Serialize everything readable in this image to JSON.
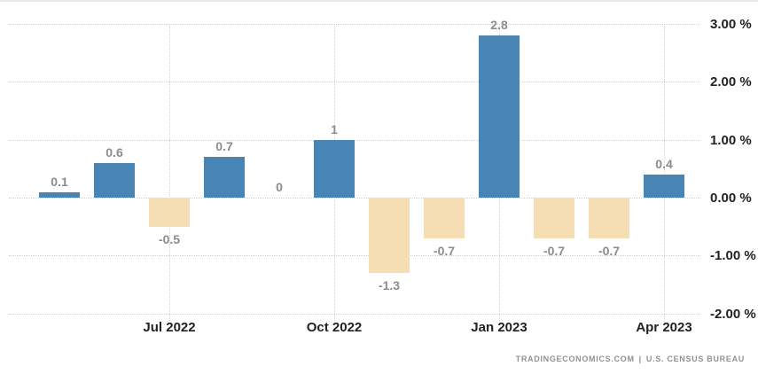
{
  "chart_data": {
    "type": "bar",
    "values": [
      0.1,
      0.6,
      -0.5,
      0.7,
      0,
      1,
      -1.3,
      -0.7,
      2.8,
      -0.7,
      -0.7,
      0.4
    ],
    "value_labels": [
      "0.1",
      "0.6",
      "-0.5",
      "0.7",
      "0",
      "1",
      "-1.3",
      "-0.7",
      "2.8",
      "-0.7",
      "-0.7",
      "0.4"
    ],
    "x_ticks": [
      {
        "label": "Jul 2022",
        "bar_index": 2
      },
      {
        "label": "Oct 2022",
        "bar_index": 5
      },
      {
        "label": "Jan 2023",
        "bar_index": 8
      },
      {
        "label": "Apr 2023",
        "bar_index": 11
      }
    ],
    "y_ticks": [
      "3.00 %",
      "2.00 %",
      "1.00 %",
      "0.00 %",
      "-1.00 %",
      "-2.00 %"
    ],
    "ylim": [
      -2.4,
      3.4
    ],
    "title": "",
    "xlabel": "",
    "ylabel": "",
    "grid": "dotted",
    "legend": "none",
    "colors": {
      "positive_bar": "#4884b4",
      "negative_bar": "#f5deb4",
      "grid_line": "#cfcfcf",
      "axis_label": "#222222",
      "value_label": "#8c8c8c",
      "attribution": "#8f9295",
      "top_border": "#e7e7e7",
      "background": "#ffffff"
    }
  },
  "attribution": {
    "source": "TRADINGECONOMICS.COM",
    "separator": "|",
    "provider": "U.S. CENSUS BUREAU"
  }
}
